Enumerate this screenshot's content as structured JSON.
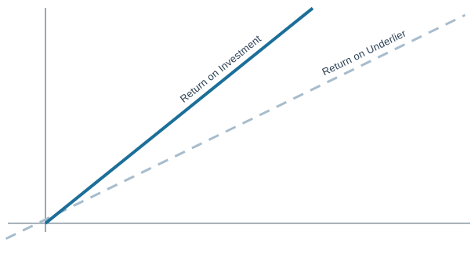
{
  "chart_data": {
    "type": "line",
    "title": "",
    "xlabel": "",
    "ylabel": "",
    "grid": false,
    "legend": "none",
    "xlim": [
      -1.05,
      10.65
    ],
    "ylim": [
      -0.46,
      6.35
    ],
    "series": [
      {
        "name": "Return on Investment",
        "x": [
          0,
          6.75
        ],
        "y": [
          0,
          6.25
        ],
        "style": "solid",
        "color": "#1b6f98"
      },
      {
        "name": "Return on Underlier",
        "x": [
          -1,
          10.6
        ],
        "y": [
          -0.45,
          6.05
        ],
        "style": "dashed",
        "color": "#a7bccc"
      }
    ]
  },
  "colors": {
    "axis": "#5b6f7e",
    "label": "#2b3f54"
  }
}
